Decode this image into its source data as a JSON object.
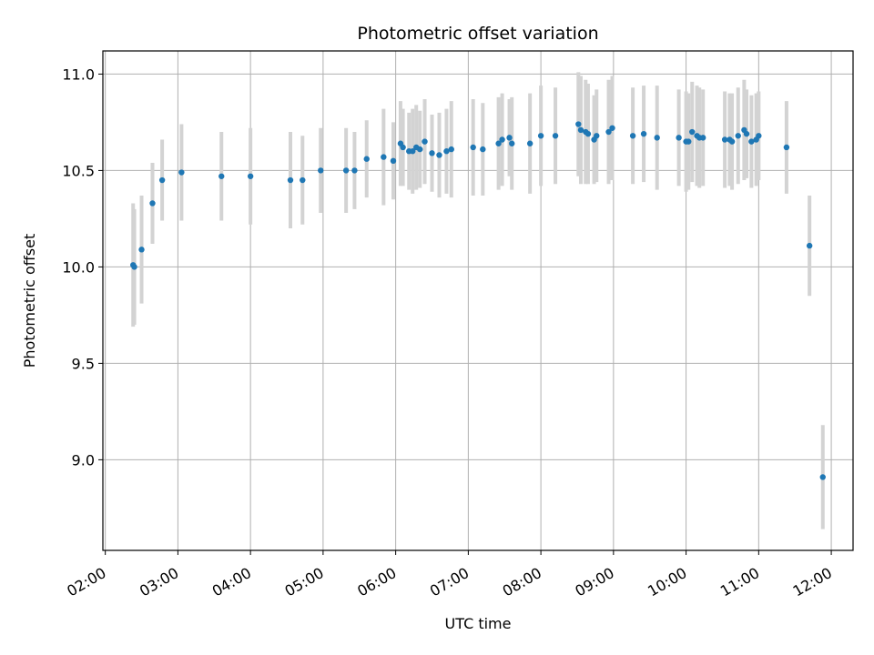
{
  "chart_data": {
    "type": "scatter",
    "title": "Photometric offset variation",
    "xlabel": "UTC time",
    "ylabel": "Photometric offset",
    "x_ticks": [
      "02:00",
      "03:00",
      "04:00",
      "05:00",
      "06:00",
      "07:00",
      "08:00",
      "09:00",
      "10:00",
      "11:00",
      "12:00"
    ],
    "y_ticks": [
      "9.0",
      "9.5",
      "10.0",
      "10.5",
      "11.0"
    ],
    "xlim": [
      "02:00",
      "12:20"
    ],
    "ylim": [
      8.53,
      11.12
    ],
    "grid": true,
    "colors": {
      "point": "#1f77b4",
      "errorbar": "#d3d3d3",
      "grid": "#b0b0b0"
    },
    "series": [
      {
        "x": [
          "02:25",
          "02:26",
          "02:32",
          "02:41",
          "02:49",
          "03:05",
          "03:38",
          "04:02",
          "04:35",
          "04:45",
          "05:00",
          "05:21",
          "05:28",
          "05:38",
          "05:52",
          "06:00",
          "06:06",
          "06:08",
          "06:13",
          "06:16",
          "06:19",
          "06:22",
          "06:26",
          "06:32",
          "06:38",
          "06:44",
          "06:48",
          "07:06",
          "07:14",
          "07:27",
          "07:30",
          "07:36",
          "07:38",
          "07:53",
          "08:02",
          "08:14",
          "08:33",
          "08:35",
          "08:39",
          "08:41",
          "08:46",
          "08:48",
          "08:58",
          "09:01",
          "09:18",
          "09:27",
          "09:38",
          "09:56",
          "10:02",
          "10:04",
          "10:07",
          "10:11",
          "10:13",
          "10:16",
          "10:34",
          "10:38",
          "10:40",
          "10:45",
          "10:50",
          "10:52",
          "10:56",
          "11:00",
          "11:02",
          "11:25",
          "11:44",
          "11:55"
        ],
        "y": [
          10.01,
          10.0,
          10.09,
          10.33,
          10.45,
          10.49,
          10.47,
          10.47,
          10.45,
          10.45,
          10.5,
          10.5,
          10.5,
          10.56,
          10.57,
          10.55,
          10.64,
          10.62,
          10.6,
          10.6,
          10.62,
          10.61,
          10.65,
          10.59,
          10.58,
          10.6,
          10.61,
          10.62,
          10.61,
          10.64,
          10.66,
          10.67,
          10.64,
          10.64,
          10.68,
          10.68,
          10.74,
          10.71,
          10.7,
          10.69,
          10.66,
          10.68,
          10.7,
          10.72,
          10.68,
          10.69,
          10.67,
          10.67,
          10.65,
          10.65,
          10.7,
          10.68,
          10.67,
          10.67,
          10.66,
          10.66,
          10.65,
          10.68,
          10.71,
          10.69,
          10.65,
          10.66,
          10.68,
          10.62,
          10.11,
          8.91
        ],
        "yerr": [
          0.32,
          0.3,
          0.28,
          0.21,
          0.21,
          0.25,
          0.23,
          0.25,
          0.25,
          0.23,
          0.22,
          0.22,
          0.2,
          0.2,
          0.25,
          0.2,
          0.22,
          0.2,
          0.2,
          0.22,
          0.22,
          0.2,
          0.22,
          0.2,
          0.22,
          0.22,
          0.25,
          0.25,
          0.24,
          0.24,
          0.24,
          0.2,
          0.24,
          0.26,
          0.26,
          0.25,
          0.27,
          0.28,
          0.27,
          0.26,
          0.23,
          0.24,
          0.27,
          0.27,
          0.25,
          0.25,
          0.27,
          0.25,
          0.26,
          0.25,
          0.26,
          0.26,
          0.26,
          0.25,
          0.25,
          0.24,
          0.25,
          0.25,
          0.26,
          0.23,
          0.24,
          0.24,
          0.23,
          0.24,
          0.26,
          0.27
        ]
      }
    ]
  }
}
